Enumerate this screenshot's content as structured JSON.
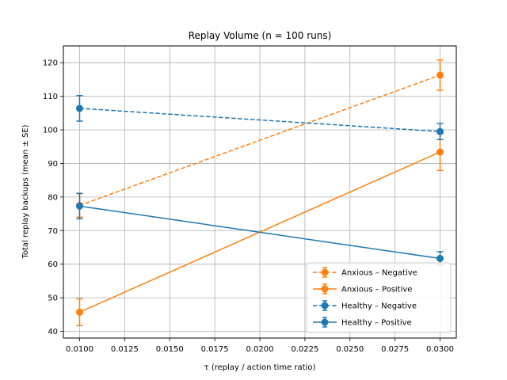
{
  "chart_data": {
    "type": "line",
    "title": "Replay Volume  (n = 100 runs)",
    "xlabel": "τ  (replay / action time ratio)",
    "ylabel": "Total replay backups   (mean ± SE)",
    "xlim": [
      0.0091,
      0.0309
    ],
    "ylim": [
      38,
      125
    ],
    "x_ticks": [
      "0.0100",
      "0.0125",
      "0.0150",
      "0.0175",
      "0.0200",
      "0.0225",
      "0.0250",
      "0.0275",
      "0.0300"
    ],
    "y_ticks": [
      "40",
      "50",
      "60",
      "70",
      "80",
      "90",
      "100",
      "110",
      "120"
    ],
    "grid": true,
    "legend_position": "lower-right",
    "series": [
      {
        "name": "Anxious – Negative",
        "color": "#ff7f0e",
        "linestyle": "dashed",
        "x": [
          0.01,
          0.03
        ],
        "y": [
          77.5,
          116.3
        ],
        "err": [
          3.5,
          4.5
        ]
      },
      {
        "name": "Anxious – Positive",
        "color": "#ff7f0e",
        "linestyle": "solid",
        "x": [
          0.01,
          0.03
        ],
        "y": [
          45.7,
          93.4
        ],
        "err": [
          4.0,
          5.5
        ]
      },
      {
        "name": "Healthy – Negative",
        "color": "#1f77b4",
        "linestyle": "dashed",
        "x": [
          0.01,
          0.03
        ],
        "y": [
          106.4,
          99.5
        ],
        "err": [
          3.8,
          2.4
        ]
      },
      {
        "name": "Healthy – Positive",
        "color": "#1f77b4",
        "linestyle": "solid",
        "x": [
          0.01,
          0.03
        ],
        "y": [
          77.3,
          61.7
        ],
        "err": [
          3.8,
          2.0
        ]
      }
    ]
  }
}
